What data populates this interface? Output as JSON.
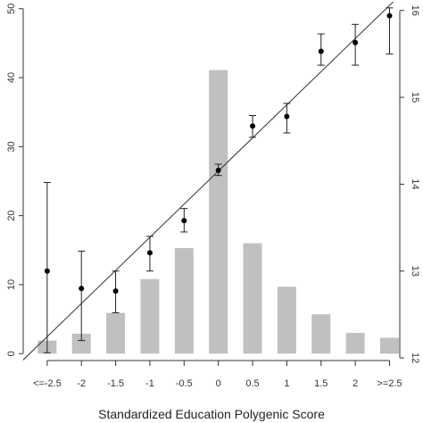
{
  "chart_data": {
    "type": "bar",
    "title": "",
    "xlabel": "Standardized Education Polygenic Score",
    "ylabel": "",
    "y2label": "",
    "categories": [
      "<=-2.5",
      "-2",
      "-1.5",
      "-1",
      "-0.5",
      "0",
      "0.5",
      "1",
      "1.5",
      "2",
      ">=2.5"
    ],
    "x_values": [
      -2.5,
      -2,
      -1.5,
      -1,
      -0.5,
      0,
      0.5,
      1,
      1.5,
      2,
      2.5
    ],
    "left_axis": {
      "ylim": [
        -1,
        51
      ],
      "ticks": [
        0,
        10,
        20,
        30,
        40,
        50
      ],
      "tick_labels": [
        "0",
        "10",
        "20",
        "30",
        "40",
        "50"
      ]
    },
    "right_axis": {
      "ylim": [
        11.97,
        16.1
      ],
      "ticks": [
        12,
        13,
        14,
        15,
        16
      ],
      "tick_labels": [
        "12",
        "13",
        "14",
        "15",
        "16"
      ]
    },
    "bars": {
      "axis": "left",
      "color": "#c0c0c0",
      "values": [
        1.9,
        2.9,
        5.9,
        10.8,
        15.3,
        41.1,
        16.0,
        9.7,
        5.7,
        3.0,
        2.3
      ]
    },
    "points": {
      "axis": "right",
      "color": "#000000",
      "values": [
        13.0,
        12.8,
        12.77,
        13.21,
        13.58,
        14.16,
        14.67,
        14.78,
        15.53,
        15.63,
        15.94
      ],
      "ci_low": [
        12.06,
        12.2,
        12.52,
        13.0,
        13.45,
        14.1,
        14.54,
        14.59,
        15.37,
        15.37,
        15.5
      ],
      "ci_high": [
        14.02,
        13.23,
        13.0,
        13.4,
        13.72,
        14.23,
        14.79,
        14.93,
        15.73,
        15.84,
        16.03
      ]
    },
    "fit_line": {
      "axis": "right",
      "x": [
        -2.86,
        2.62
      ],
      "y": [
        11.97,
        16.15
      ]
    },
    "grid": false,
    "legend": "none"
  }
}
